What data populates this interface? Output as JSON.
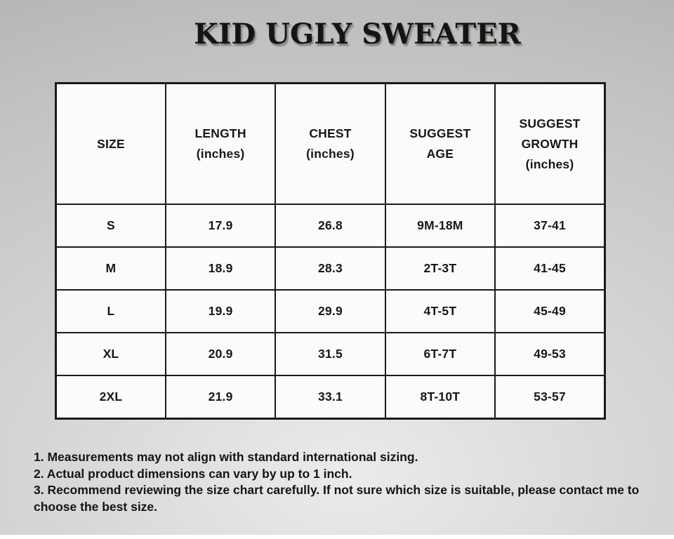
{
  "title": "KID UGLY SWEATER",
  "table": {
    "headers": [
      "SIZE",
      "LENGTH\n(inches)",
      "CHEST\n(inches)",
      "SUGGEST\nAGE",
      "SUGGEST\nGROWTH\n(inches)"
    ],
    "rows": [
      {
        "cells": [
          "S",
          "17.9",
          "26.8",
          "9M-18M",
          "37-41"
        ]
      },
      {
        "cells": [
          "M",
          "18.9",
          "28.3",
          "2T-3T",
          "41-45"
        ]
      },
      {
        "cells": [
          "L",
          "19.9",
          "29.9",
          "4T-5T",
          "45-49"
        ]
      },
      {
        "cells": [
          "XL",
          "20.9",
          "31.5",
          "6T-7T",
          "49-53"
        ]
      },
      {
        "cells": [
          "2XL",
          "21.9",
          "33.1",
          "8T-10T",
          "53-57"
        ]
      }
    ]
  },
  "notes": {
    "lines": [
      "1. Measurements may not align with standard international sizing.",
      "2. Actual product dimensions can vary by up to 1 inch.",
      "3. Recommend reviewing the size chart carefully. If not sure which size is suitable, please contact me to\nchoose the best size."
    ]
  },
  "colors": {
    "background_light": "#ecebe9",
    "background_dark": "#aeacaa",
    "cell_background": "#fcfbfa",
    "table_border": "#1a1a1a",
    "text": "#141414"
  }
}
